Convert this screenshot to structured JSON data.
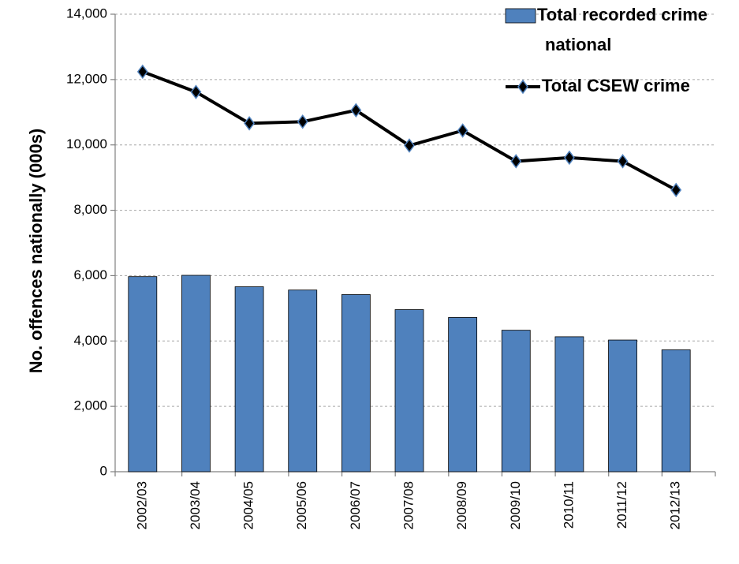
{
  "chart_data": {
    "type": "bar-line",
    "y_axis_label": "No. offences nationally (000s)",
    "categories": [
      "2002/03",
      "2003/04",
      "2004/05",
      "2005/06",
      "2006/07",
      "2007/08",
      "2008/09",
      "2009/10",
      "2010/11",
      "2011/12",
      "2012/13"
    ],
    "series": [
      {
        "name": "Total recorded crime national",
        "type": "bar",
        "color": "#4f81bd",
        "values": [
          5970,
          6010,
          5660,
          5560,
          5420,
          4960,
          4720,
          4330,
          4130,
          4030,
          3730
        ]
      },
      {
        "name": "Total CSEW crime",
        "type": "line",
        "color": "#000000",
        "values": [
          12240,
          11620,
          10660,
          10710,
          11060,
          9980,
          10440,
          9500,
          9610,
          9500,
          8620
        ]
      }
    ],
    "ylim": [
      0,
      14000
    ],
    "yticks": [
      0,
      {
        "value": 2000,
        "label": "2,000"
      },
      {
        "value": 4000,
        "label": "4,000"
      },
      {
        "value": 6000,
        "label": "6,000"
      },
      {
        "value": 8000,
        "label": "8,000"
      },
      {
        "value": 10000,
        "label": "10,000"
      },
      {
        "value": 12000,
        "label": "12,000"
      },
      {
        "value": 14000,
        "label": "14,000"
      }
    ],
    "grid": true,
    "legend": "top-right"
  }
}
